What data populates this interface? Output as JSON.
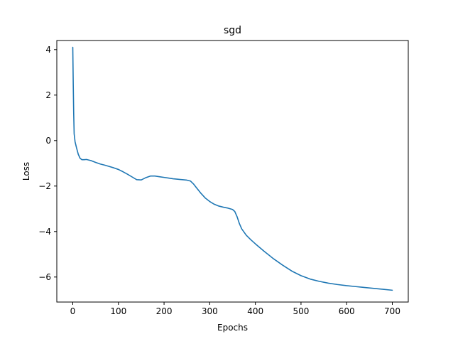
{
  "chart_data": {
    "type": "line",
    "title": "sgd",
    "xlabel": "Epochs",
    "ylabel": "Loss",
    "xlim": [
      -35,
      735
    ],
    "ylim": [
      -7.1,
      4.4
    ],
    "xticks": [
      0,
      100,
      200,
      300,
      400,
      500,
      600,
      700
    ],
    "xtick_labels": [
      "0",
      "100",
      "200",
      "300",
      "400",
      "500",
      "600",
      "700"
    ],
    "yticks": [
      4,
      2,
      0,
      -2,
      -4,
      -6
    ],
    "ytick_labels": [
      "4",
      "2",
      "0",
      "−2",
      "−4",
      "−6"
    ],
    "grid": false,
    "series": [
      {
        "color": "#1f77b4",
        "x": [
          0,
          1,
          2,
          3,
          5,
          8,
          12,
          16,
          20,
          25,
          30,
          40,
          50,
          60,
          70,
          80,
          90,
          100,
          110,
          120,
          130,
          140,
          150,
          160,
          170,
          180,
          190,
          200,
          210,
          220,
          230,
          240,
          250,
          258,
          265,
          270,
          280,
          290,
          300,
          310,
          320,
          330,
          340,
          350,
          355,
          360,
          365,
          370,
          380,
          390,
          400,
          420,
          440,
          460,
          480,
          500,
          520,
          540,
          560,
          580,
          600,
          620,
          640,
          660,
          680,
          700
        ],
        "y": [
          4.1,
          2.5,
          1.2,
          0.3,
          -0.05,
          -0.3,
          -0.6,
          -0.78,
          -0.84,
          -0.84,
          -0.83,
          -0.88,
          -0.96,
          -1.03,
          -1.08,
          -1.14,
          -1.2,
          -1.27,
          -1.37,
          -1.48,
          -1.6,
          -1.72,
          -1.73,
          -1.63,
          -1.56,
          -1.56,
          -1.59,
          -1.62,
          -1.65,
          -1.68,
          -1.7,
          -1.72,
          -1.74,
          -1.78,
          -1.92,
          -2.05,
          -2.3,
          -2.52,
          -2.68,
          -2.8,
          -2.88,
          -2.93,
          -2.97,
          -3.03,
          -3.12,
          -3.35,
          -3.65,
          -3.88,
          -4.16,
          -4.36,
          -4.54,
          -4.88,
          -5.2,
          -5.48,
          -5.74,
          -5.94,
          -6.09,
          -6.19,
          -6.27,
          -6.33,
          -6.38,
          -6.42,
          -6.46,
          -6.5,
          -6.54,
          -6.58
        ]
      }
    ]
  }
}
